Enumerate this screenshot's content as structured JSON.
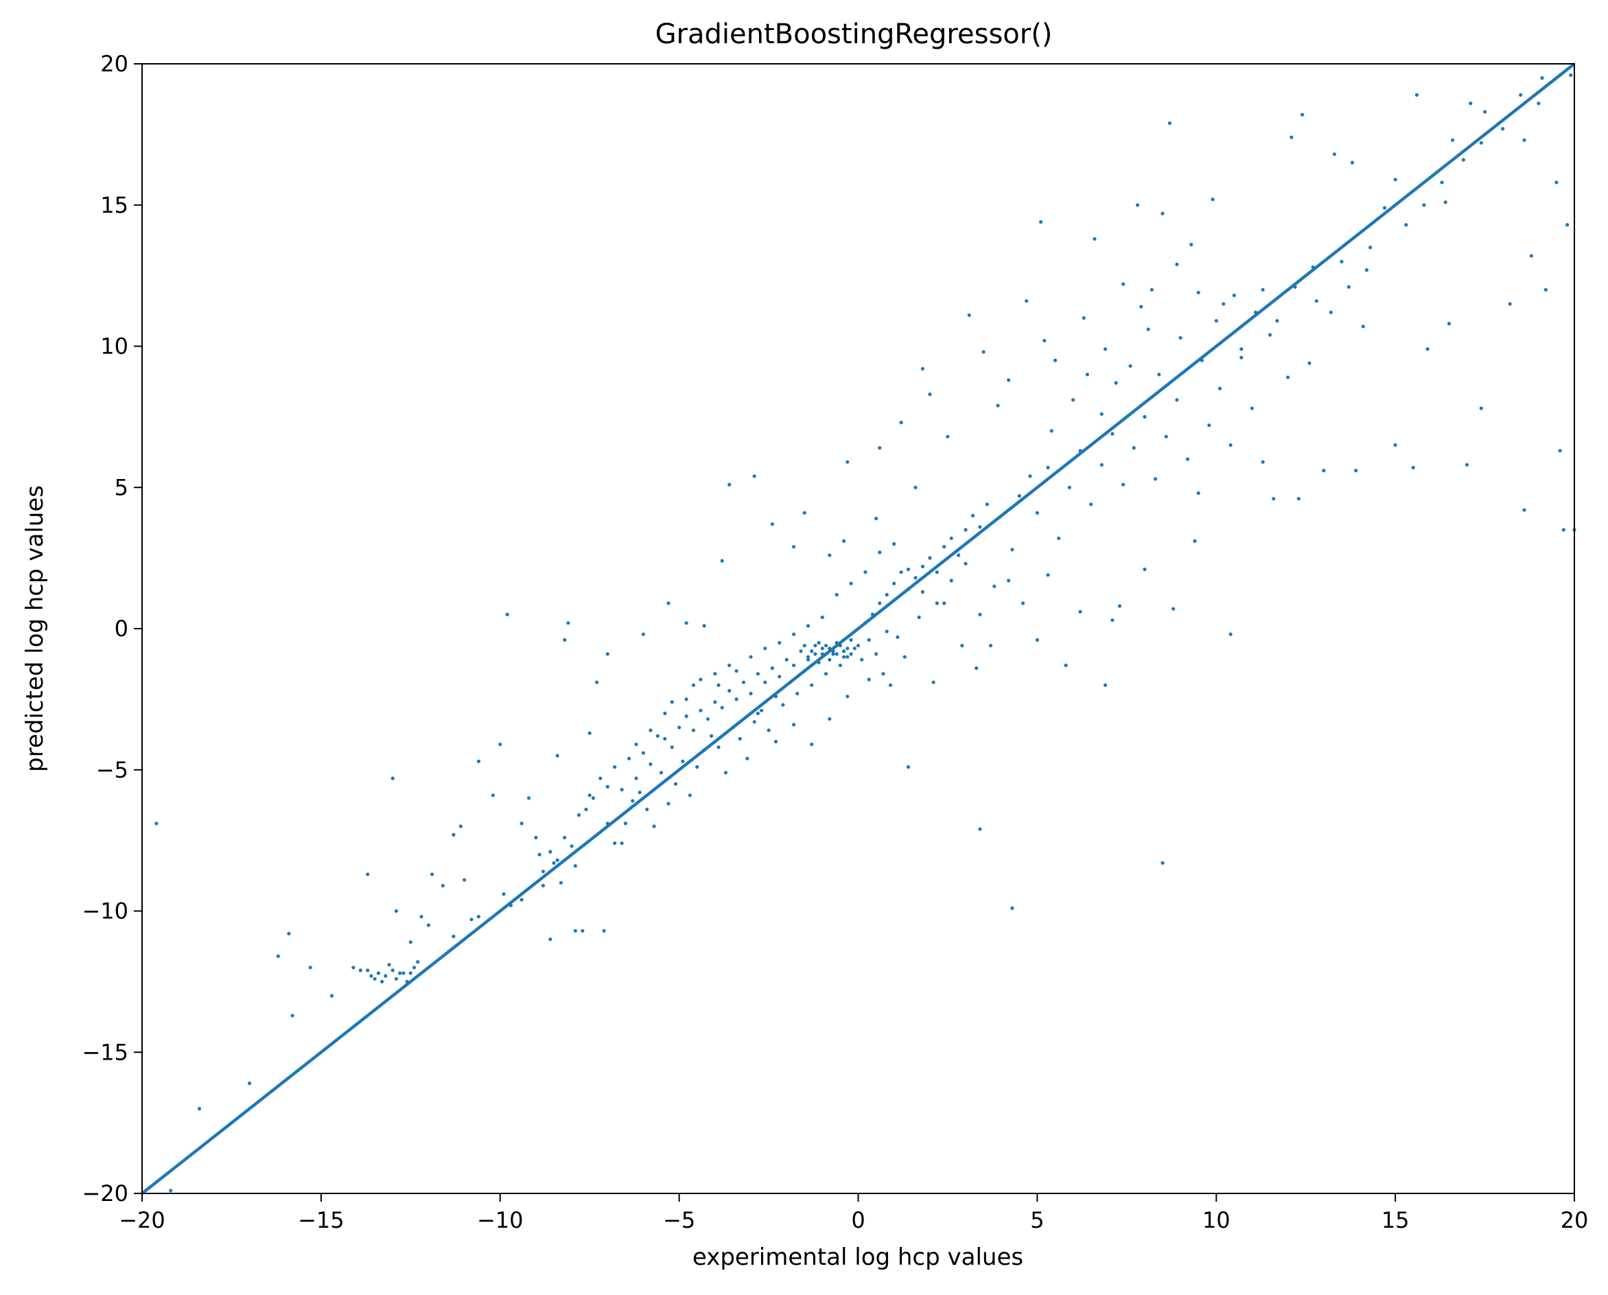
{
  "chart_data": {
    "type": "scatter",
    "title": "GradientBoostingRegressor()",
    "xlabel": "experimental log hcp values",
    "ylabel": "predicted log hcp values",
    "xlim": [
      -20,
      20
    ],
    "ylim": [
      -20,
      20
    ],
    "xticks": [
      -20,
      -15,
      -10,
      -5,
      0,
      5,
      10,
      15,
      20
    ],
    "yticks": [
      -20,
      -15,
      -10,
      -5,
      0,
      5,
      10,
      15,
      20
    ],
    "xtick_labels": [
      "−20",
      "−15",
      "−10",
      "−5",
      "0",
      "5",
      "10",
      "15",
      "20"
    ],
    "ytick_labels": [
      "−20",
      "−15",
      "−10",
      "−5",
      "0",
      "5",
      "10",
      "15",
      "20"
    ],
    "grid": false,
    "color": "#1f77b4",
    "reference_line": {
      "x": [
        -20,
        20
      ],
      "y": [
        -20,
        20
      ]
    },
    "points": [
      [
        -19.6,
        -6.9
      ],
      [
        -19.2,
        -19.9
      ],
      [
        -18.4,
        -17.0
      ],
      [
        -17.0,
        -16.1
      ],
      [
        -16.2,
        -11.6
      ],
      [
        -15.9,
        -10.8
      ],
      [
        -15.8,
        -13.7
      ],
      [
        -15.3,
        -12.0
      ],
      [
        -14.7,
        -13.0
      ],
      [
        -14.1,
        -12.0
      ],
      [
        -13.9,
        -12.1
      ],
      [
        -13.7,
        -12.1
      ],
      [
        -13.6,
        -12.3
      ],
      [
        -13.5,
        -12.4
      ],
      [
        -13.4,
        -12.2
      ],
      [
        -13.3,
        -12.5
      ],
      [
        -13.2,
        -12.3
      ],
      [
        -13.0,
        -12.1
      ],
      [
        -12.9,
        -12.4
      ],
      [
        -12.7,
        -12.2
      ],
      [
        -12.6,
        -12.5
      ],
      [
        -12.5,
        -12.2
      ],
      [
        -12.4,
        -12.0
      ],
      [
        -12.3,
        -11.8
      ],
      [
        -13.1,
        -11.9
      ],
      [
        -12.8,
        -12.2
      ],
      [
        -13.7,
        -8.7
      ],
      [
        -13.0,
        -5.3
      ],
      [
        -12.9,
        -10.0
      ],
      [
        -12.5,
        -11.1
      ],
      [
        -12.2,
        -10.2
      ],
      [
        -12.0,
        -10.5
      ],
      [
        -11.9,
        -8.7
      ],
      [
        -11.6,
        -9.1
      ],
      [
        -11.3,
        -10.9
      ],
      [
        -11.1,
        -7.0
      ],
      [
        -11.0,
        -8.9
      ],
      [
        -10.8,
        -10.3
      ],
      [
        -10.6,
        -4.7
      ],
      [
        -10.2,
        -5.9
      ],
      [
        -10.0,
        -4.1
      ],
      [
        -9.9,
        -9.4
      ],
      [
        -9.7,
        -9.8
      ],
      [
        -9.4,
        -9.6
      ],
      [
        -9.2,
        -6.0
      ],
      [
        -9.0,
        -7.4
      ],
      [
        -8.8,
        -9.1
      ],
      [
        -8.6,
        -11.0
      ],
      [
        -8.5,
        -8.3
      ],
      [
        -8.4,
        -4.5
      ],
      [
        -8.2,
        -0.4
      ],
      [
        -8.1,
        0.2
      ],
      [
        -7.9,
        -10.7
      ],
      [
        -7.7,
        -10.7
      ],
      [
        -7.5,
        -3.7
      ],
      [
        -7.3,
        -1.9
      ],
      [
        -7.1,
        -10.7
      ],
      [
        -7.0,
        -0.9
      ],
      [
        -6.8,
        -7.6
      ],
      [
        -9.8,
        0.5
      ],
      [
        -8.8,
        -8.6
      ],
      [
        -8.6,
        -7.9
      ],
      [
        -8.4,
        -8.2
      ],
      [
        -8.2,
        -7.4
      ],
      [
        -8.0,
        -7.7
      ],
      [
        -7.8,
        -6.6
      ],
      [
        -7.6,
        -6.4
      ],
      [
        -7.4,
        -6.0
      ],
      [
        -7.2,
        -5.3
      ],
      [
        -7.0,
        -5.6
      ],
      [
        -6.8,
        -4.9
      ],
      [
        -6.6,
        -5.7
      ],
      [
        -6.4,
        -4.6
      ],
      [
        -6.2,
        -5.3
      ],
      [
        -6.0,
        -4.4
      ],
      [
        -5.8,
        -4.8
      ],
      [
        -5.6,
        -3.8
      ],
      [
        -5.4,
        -3.9
      ],
      [
        -5.2,
        -4.2
      ],
      [
        -5.0,
        -3.5
      ],
      [
        -4.8,
        -3.1
      ],
      [
        -4.6,
        -3.6
      ],
      [
        -4.4,
        -2.9
      ],
      [
        -4.2,
        -3.2
      ],
      [
        -4.0,
        -2.6
      ],
      [
        -3.8,
        -2.8
      ],
      [
        -3.6,
        -2.2
      ],
      [
        -3.4,
        -2.5
      ],
      [
        -3.2,
        -1.9
      ],
      [
        -3.0,
        -2.3
      ],
      [
        -2.8,
        -1.6
      ],
      [
        -2.6,
        -1.9
      ],
      [
        -2.4,
        -1.4
      ],
      [
        -2.2,
        -1.7
      ],
      [
        -2.0,
        -1.1
      ],
      [
        -1.8,
        -1.3
      ],
      [
        -1.6,
        -0.8
      ],
      [
        -1.4,
        -1.0
      ],
      [
        -1.2,
        -0.6
      ],
      [
        -1.0,
        -0.9
      ],
      [
        -0.8,
        -0.7
      ],
      [
        -0.6,
        -0.5
      ],
      [
        -0.4,
        -0.8
      ],
      [
        -0.2,
        -0.4
      ],
      [
        0.0,
        -0.6
      ],
      [
        0.2,
        0.2
      ],
      [
        0.4,
        0.5
      ],
      [
        0.6,
        0.9
      ],
      [
        0.8,
        1.2
      ],
      [
        1.0,
        1.6
      ],
      [
        1.2,
        2.0
      ],
      [
        1.4,
        1.4
      ],
      [
        1.6,
        1.8
      ],
      [
        1.8,
        2.2
      ],
      [
        2.0,
        2.5
      ],
      [
        2.2,
        2.0
      ],
      [
        2.4,
        2.9
      ],
      [
        2.6,
        3.2
      ],
      [
        2.8,
        2.6
      ],
      [
        3.0,
        3.5
      ],
      [
        3.2,
        4.0
      ],
      [
        3.4,
        3.6
      ],
      [
        3.6,
        4.4
      ],
      [
        -6.5,
        -6.9
      ],
      [
        -6.3,
        -6.1
      ],
      [
        -6.1,
        -5.8
      ],
      [
        -5.9,
        -6.4
      ],
      [
        -5.7,
        -7.0
      ],
      [
        -5.5,
        -5.1
      ],
      [
        -5.3,
        -6.2
      ],
      [
        -5.1,
        -5.5
      ],
      [
        -4.9,
        -4.7
      ],
      [
        -4.7,
        -5.9
      ],
      [
        -4.5,
        -4.9
      ],
      [
        -4.3,
        -4.3
      ],
      [
        -4.1,
        -3.8
      ],
      [
        -3.9,
        -4.2
      ],
      [
        -3.7,
        -5.1
      ],
      [
        -3.5,
        -3.5
      ],
      [
        -3.3,
        -3.9
      ],
      [
        -3.1,
        -4.6
      ],
      [
        -2.9,
        -3.3
      ],
      [
        -2.7,
        -2.9
      ],
      [
        -2.5,
        -3.6
      ],
      [
        -2.3,
        -2.4
      ],
      [
        -2.1,
        -2.7
      ],
      [
        -1.9,
        -1.9
      ],
      [
        -1.7,
        -2.3
      ],
      [
        -1.5,
        -1.5
      ],
      [
        -1.3,
        -2.0
      ],
      [
        -1.1,
        -1.2
      ],
      [
        -0.9,
        -1.6
      ],
      [
        -0.7,
        -0.9
      ],
      [
        -0.5,
        -1.3
      ],
      [
        -0.3,
        -1.0
      ],
      [
        -0.1,
        -0.7
      ],
      [
        0.1,
        -1.1
      ],
      [
        0.3,
        -0.4
      ],
      [
        0.5,
        -0.9
      ],
      [
        0.7,
        -1.6
      ],
      [
        0.9,
        -2.0
      ],
      [
        1.1,
        -0.3
      ],
      [
        -1.5,
        -0.6
      ],
      [
        -1.3,
        -0.8
      ],
      [
        -1.2,
        -0.9
      ],
      [
        -1.0,
        -0.7
      ],
      [
        -0.9,
        -0.9
      ],
      [
        -0.8,
        -1.1
      ],
      [
        -0.7,
        -0.8
      ],
      [
        -0.6,
        -0.9
      ],
      [
        -0.5,
        -0.6
      ],
      [
        -0.4,
        -1.0
      ],
      [
        -0.3,
        -0.7
      ],
      [
        -0.2,
        -0.9
      ],
      [
        -1.1,
        -0.5
      ],
      [
        -1.4,
        -1.1
      ],
      [
        -0.6,
        -0.6
      ],
      [
        -0.9,
        -0.6
      ],
      [
        -5.4,
        -3.0
      ],
      [
        -4.8,
        -2.5
      ],
      [
        -4.4,
        -1.8
      ],
      [
        -4.0,
        -1.6
      ],
      [
        -3.6,
        -1.3
      ],
      [
        -3.0,
        -1.0
      ],
      [
        -2.6,
        -0.7
      ],
      [
        -2.2,
        -0.5
      ],
      [
        -1.8,
        -0.2
      ],
      [
        -1.4,
        0.1
      ],
      [
        -1.0,
        0.4
      ],
      [
        -0.6,
        1.2
      ],
      [
        -0.2,
        1.6
      ],
      [
        0.2,
        2.0
      ],
      [
        0.6,
        2.7
      ],
      [
        1.0,
        3.0
      ],
      [
        1.4,
        2.1
      ],
      [
        1.8,
        1.3
      ],
      [
        2.2,
        0.9
      ],
      [
        2.6,
        1.7
      ],
      [
        3.0,
        2.3
      ],
      [
        3.4,
        0.5
      ],
      [
        3.8,
        1.5
      ],
      [
        -6.0,
        -0.2
      ],
      [
        -5.3,
        0.9
      ],
      [
        -4.8,
        0.2
      ],
      [
        -4.3,
        0.1
      ],
      [
        -3.8,
        2.4
      ],
      [
        -3.6,
        5.1
      ],
      [
        -2.9,
        5.4
      ],
      [
        -2.4,
        3.7
      ],
      [
        -1.8,
        2.9
      ],
      [
        -1.5,
        4.1
      ],
      [
        -0.8,
        2.6
      ],
      [
        -0.4,
        3.1
      ],
      [
        -0.3,
        5.9
      ],
      [
        0.5,
        3.9
      ],
      [
        0.6,
        6.4
      ],
      [
        1.2,
        7.3
      ],
      [
        1.6,
        5.0
      ],
      [
        1.8,
        9.2
      ],
      [
        2.0,
        8.3
      ],
      [
        2.5,
        6.8
      ],
      [
        3.1,
        11.1
      ],
      [
        3.5,
        9.8
      ],
      [
        3.9,
        7.9
      ],
      [
        4.2,
        8.8
      ],
      [
        4.7,
        11.6
      ],
      [
        5.1,
        14.4
      ],
      [
        5.2,
        10.2
      ],
      [
        5.5,
        9.5
      ],
      [
        6.3,
        11.0
      ],
      [
        6.6,
        13.8
      ],
      [
        6.9,
        9.9
      ],
      [
        7.4,
        12.2
      ],
      [
        7.8,
        15.0
      ],
      [
        7.9,
        11.4
      ],
      [
        8.2,
        12.0
      ],
      [
        8.5,
        14.7
      ],
      [
        8.7,
        17.9
      ],
      [
        8.9,
        12.9
      ],
      [
        9.3,
        13.6
      ],
      [
        9.5,
        11.9
      ],
      [
        9.9,
        15.2
      ],
      [
        10.2,
        11.5
      ],
      [
        10.7,
        9.9
      ],
      [
        11.3,
        12.0
      ],
      [
        11.7,
        10.9
      ],
      [
        12.1,
        17.4
      ],
      [
        12.4,
        18.2
      ],
      [
        12.7,
        12.8
      ],
      [
        13.3,
        16.8
      ],
      [
        13.5,
        13.0
      ],
      [
        13.8,
        16.5
      ],
      [
        14.2,
        12.7
      ],
      [
        15.0,
        15.9
      ],
      [
        15.6,
        18.9
      ],
      [
        15.9,
        9.9
      ],
      [
        16.4,
        15.1
      ],
      [
        16.6,
        17.3
      ],
      [
        17.1,
        18.6
      ],
      [
        17.4,
        17.2
      ],
      [
        18.2,
        11.5
      ],
      [
        18.6,
        17.3
      ],
      [
        19.1,
        19.5
      ],
      [
        19.5,
        15.8
      ],
      [
        19.8,
        14.3
      ],
      [
        19.9,
        19.6
      ],
      [
        4.3,
        2.8
      ],
      [
        4.5,
        4.7
      ],
      [
        4.8,
        5.4
      ],
      [
        5.0,
        4.1
      ],
      [
        5.3,
        5.7
      ],
      [
        5.6,
        3.2
      ],
      [
        5.9,
        5.0
      ],
      [
        6.2,
        6.3
      ],
      [
        6.5,
        4.4
      ],
      [
        6.8,
        5.8
      ],
      [
        7.1,
        6.9
      ],
      [
        7.4,
        5.1
      ],
      [
        7.7,
        6.4
      ],
      [
        8.0,
        7.5
      ],
      [
        8.3,
        5.3
      ],
      [
        8.6,
        6.8
      ],
      [
        8.9,
        8.1
      ],
      [
        9.2,
        6.0
      ],
      [
        9.5,
        4.8
      ],
      [
        9.8,
        7.2
      ],
      [
        10.1,
        8.5
      ],
      [
        10.4,
        6.5
      ],
      [
        10.7,
        9.6
      ],
      [
        11.0,
        7.8
      ],
      [
        11.3,
        5.9
      ],
      [
        11.6,
        4.6
      ],
      [
        12.0,
        8.9
      ],
      [
        12.3,
        4.6
      ],
      [
        12.6,
        9.4
      ],
      [
        13.0,
        5.6
      ],
      [
        13.9,
        5.6
      ],
      [
        14.1,
        10.7
      ],
      [
        15.0,
        6.5
      ],
      [
        15.5,
        5.7
      ],
      [
        16.5,
        10.8
      ],
      [
        17.0,
        5.8
      ],
      [
        17.4,
        7.8
      ],
      [
        18.6,
        4.2
      ],
      [
        18.8,
        13.2
      ],
      [
        19.2,
        12.0
      ],
      [
        19.6,
        6.3
      ],
      [
        19.7,
        3.5
      ],
      [
        20.0,
        3.5
      ],
      [
        4.2,
        1.7
      ],
      [
        4.6,
        0.9
      ],
      [
        5.0,
        -0.4
      ],
      [
        5.3,
        1.9
      ],
      [
        5.8,
        -1.3
      ],
      [
        6.2,
        0.6
      ],
      [
        6.9,
        -2.0
      ],
      [
        7.1,
        0.3
      ],
      [
        7.3,
        0.8
      ],
      [
        8.0,
        2.1
      ],
      [
        8.8,
        0.7
      ],
      [
        9.4,
        3.1
      ],
      [
        10.4,
        -0.2
      ],
      [
        3.4,
        -7.1
      ],
      [
        4.3,
        -9.9
      ],
      [
        8.5,
        -8.3
      ],
      [
        1.4,
        -4.9
      ],
      [
        -11.3,
        -7.3
      ],
      [
        -10.6,
        -10.2
      ],
      [
        -9.4,
        -6.9
      ],
      [
        -8.9,
        -8.0
      ],
      [
        -8.3,
        -9.0
      ],
      [
        -7.9,
        -8.4
      ],
      [
        -7.5,
        -5.9
      ],
      [
        -7.0,
        -6.9
      ],
      [
        -6.6,
        -7.6
      ],
      [
        -6.2,
        -4.1
      ],
      [
        -5.8,
        -3.6
      ],
      [
        -5.2,
        -2.6
      ],
      [
        -4.6,
        -2.0
      ],
      [
        -3.9,
        -2.0
      ],
      [
        -3.4,
        -1.5
      ],
      [
        -2.8,
        -3.0
      ],
      [
        -2.3,
        -4.0
      ],
      [
        -1.8,
        -3.4
      ],
      [
        -1.3,
        -4.1
      ],
      [
        -0.8,
        -3.2
      ],
      [
        -0.3,
        -2.4
      ],
      [
        0.3,
        -1.8
      ],
      [
        0.8,
        -0.1
      ],
      [
        1.3,
        -1.0
      ],
      [
        1.7,
        0.4
      ],
      [
        2.1,
        -1.9
      ],
      [
        2.4,
        0.9
      ],
      [
        2.9,
        -0.6
      ],
      [
        3.3,
        -1.4
      ],
      [
        3.7,
        -0.6
      ],
      [
        5.4,
        7.0
      ],
      [
        6.0,
        8.1
      ],
      [
        6.4,
        9.0
      ],
      [
        6.8,
        7.6
      ],
      [
        7.2,
        8.7
      ],
      [
        7.6,
        9.3
      ],
      [
        8.1,
        10.6
      ],
      [
        8.4,
        9.0
      ],
      [
        9.0,
        10.3
      ],
      [
        9.6,
        9.5
      ],
      [
        10.0,
        10.9
      ],
      [
        10.5,
        11.8
      ],
      [
        11.1,
        11.2
      ],
      [
        11.5,
        10.4
      ],
      [
        12.2,
        12.1
      ],
      [
        12.8,
        11.6
      ],
      [
        13.2,
        11.2
      ],
      [
        13.7,
        12.1
      ],
      [
        14.3,
        13.5
      ],
      [
        14.7,
        14.9
      ],
      [
        15.3,
        14.3
      ],
      [
        15.8,
        15.0
      ],
      [
        16.3,
        15.8
      ],
      [
        16.9,
        16.6
      ],
      [
        17.5,
        18.3
      ],
      [
        18.0,
        17.7
      ],
      [
        18.5,
        18.9
      ],
      [
        19.0,
        18.6
      ]
    ]
  }
}
